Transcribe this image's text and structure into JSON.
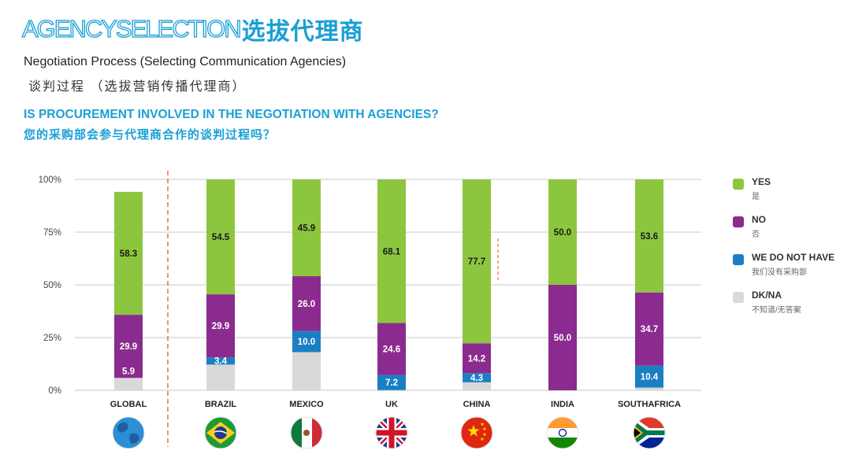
{
  "header": {
    "brand_en": "AGENCYSELECTION",
    "brand_cn": "选拔代理商",
    "subtitle_en": "Negotiation Process (Selecting Communication Agencies)",
    "subtitle_cn": "谈判过程 （选拔营销传播代理商）",
    "question_en": "IS PROCUREMENT INVOLVED IN THE NEGOTIATION WITH AGENCIES?",
    "question_cn": "您的采购部会参与代理商合作的谈判过程吗？"
  },
  "colors": {
    "yes": "#8cc63f",
    "no": "#8b2b8f",
    "we_do_not_have": "#1b7fc4",
    "dk_na": "#d9d9d9",
    "accent": "#1a9fd6",
    "divider": "#e8703a"
  },
  "legend": [
    {
      "key": "yes",
      "label": "YES",
      "sub": "是"
    },
    {
      "key": "no",
      "label": "NO",
      "sub": "否"
    },
    {
      "key": "we_do_not_have",
      "label": "WE DO NOT HAVE",
      "sub": "我们没有采购部"
    },
    {
      "key": "dk_na",
      "label": "DK/NA",
      "sub": "不知道/无答案"
    }
  ],
  "flags": [
    {
      "country": "GLOBAL",
      "icon": "globe-icon"
    },
    {
      "country": "BRAZIL",
      "icon": "brazil-flag-icon"
    },
    {
      "country": "MEXICO",
      "icon": "mexico-flag-icon"
    },
    {
      "country": "UK",
      "icon": "uk-flag-icon"
    },
    {
      "country": "CHINA",
      "icon": "china-flag-icon"
    },
    {
      "country": "INDIA",
      "icon": "india-flag-icon"
    },
    {
      "country": "SOUTHAFRICA",
      "icon": "south-africa-flag-icon"
    }
  ],
  "chart_data": {
    "type": "bar",
    "stacked": true,
    "categories": [
      "GLOBAL",
      "BRAZIL",
      "MEXICO",
      "UK",
      "CHINA",
      "INDIA",
      "SOUTHAFRICA"
    ],
    "series": [
      {
        "name": "DK/NA",
        "key": "dk_na",
        "values": [
          5.9,
          12.2,
          18.1,
          0.1,
          3.8,
          0,
          1.3
        ],
        "labels": [
          "",
          "",
          "",
          "",
          "",
          "",
          ""
        ]
      },
      {
        "name": "WE DO NOT HAVE",
        "key": "we_do_not_have",
        "values": [
          0,
          3.4,
          10.0,
          7.2,
          4.3,
          0,
          10.4
        ],
        "labels": [
          "",
          "3.4",
          "10.0",
          "7.2",
          "4.3",
          "",
          "10.4"
        ]
      },
      {
        "name": "NO",
        "key": "no",
        "values": [
          29.9,
          29.9,
          26.0,
          24.6,
          14.2,
          50.0,
          34.7
        ],
        "labels": [
          "29.9",
          "29.9",
          "26.0",
          "24.6",
          "14.2",
          "50.0",
          "34.7"
        ]
      },
      {
        "name": "YES",
        "key": "yes",
        "values": [
          58.3,
          54.5,
          45.9,
          68.1,
          77.7,
          50.0,
          53.6
        ],
        "labels": [
          "58.3",
          "54.5",
          "45.9",
          "68.1",
          "77.7",
          "50.0",
          "53.6"
        ]
      }
    ],
    "extra_labels": [
      {
        "category": "GLOBAL",
        "text": "5.9"
      }
    ],
    "yticks": [
      "0%",
      "25%",
      "50%",
      "75%",
      "100%"
    ],
    "ylim": [
      0,
      100
    ],
    "grid": true,
    "legend_position": "right"
  }
}
